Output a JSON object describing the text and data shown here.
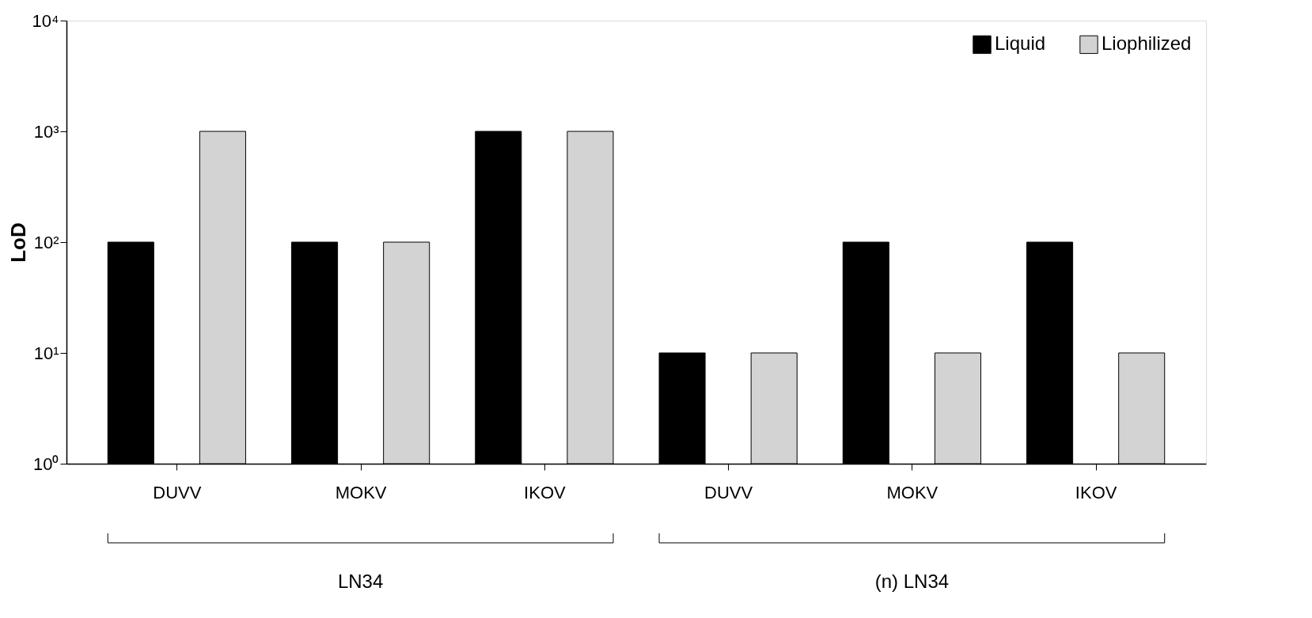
{
  "chart_data": {
    "type": "bar",
    "ylabel": "LoD",
    "categories": [
      "DUVV",
      "MOKV",
      "IKOV",
      "DUVV",
      "MOKV",
      "IKOV"
    ],
    "series": [
      {
        "name": "Liquid",
        "color": "#000000",
        "values": [
          100,
          100,
          1000,
          10,
          100,
          100
        ]
      },
      {
        "name": "Liophilized",
        "color": "#d3d3d3",
        "values": [
          1000,
          100,
          1000,
          10,
          10,
          10
        ]
      }
    ],
    "log": true,
    "ylim": [
      1,
      10000
    ],
    "yticks": [
      {
        "value": 1,
        "label": "10⁰"
      },
      {
        "value": 10,
        "label": "10¹"
      },
      {
        "value": 100,
        "label": "10²"
      },
      {
        "value": 1000,
        "label": "10³"
      },
      {
        "value": 10000,
        "label": "10⁴"
      }
    ],
    "grid": false,
    "legend": "top right",
    "annotations": [
      "LN34",
      "(n) LN34"
    ]
  }
}
